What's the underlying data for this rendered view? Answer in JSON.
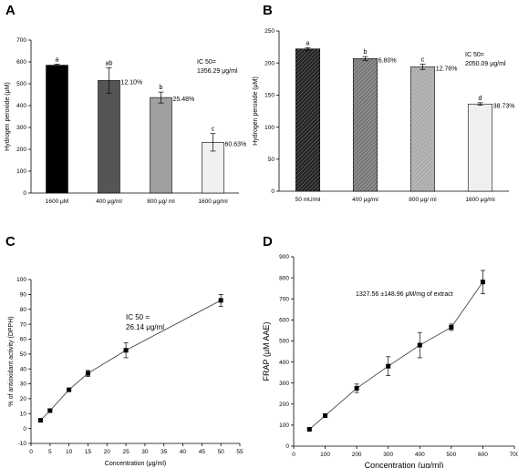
{
  "chart_data": [
    {
      "panel": "A",
      "type": "bar",
      "categories": [
        "1600 μM",
        "400 μg/ml",
        "800 μg/ ml",
        "1600 μg/ml"
      ],
      "values": [
        585,
        515,
        437,
        232
      ],
      "errors": [
        5,
        58,
        25,
        40
      ],
      "letters": [
        "a",
        "ab",
        "b",
        "c"
      ],
      "percents": [
        "",
        "12.10%",
        "25.48%",
        "60.63%"
      ],
      "fills": [
        "#000000",
        "#555555",
        "#a0a0a0",
        "#f0f0f0"
      ],
      "ylabel": "Hydrogen peroxide (μM)",
      "xlabel": "",
      "ylim": [
        0,
        700
      ],
      "yticks": [
        0,
        100,
        200,
        300,
        400,
        500,
        600,
        700
      ],
      "annotation": [
        "IC 50=",
        "1356.29 μg/ml"
      ]
    },
    {
      "panel": "B",
      "type": "bar",
      "categories": [
        "50 mU/ml",
        "400 μg/ml",
        "800 μg/ ml",
        "1600 μg/ml"
      ],
      "values": [
        222,
        207,
        194,
        136
      ],
      "errors": [
        2,
        3,
        4,
        2
      ],
      "letters": [
        "a",
        "b",
        "c",
        "d"
      ],
      "percents": [
        "",
        "6.80%",
        "12.76%",
        "38.73%"
      ],
      "fills": [
        "#222222",
        "#777777",
        "#aaaaaa",
        "#eeeeee"
      ],
      "hatched": true,
      "ylabel": "Hydrogen peroxide (μM)",
      "xlabel": "",
      "ylim": [
        0,
        250
      ],
      "yticks": [
        0,
        50,
        100,
        150,
        200,
        250
      ],
      "annotation": [
        "IC 50=",
        "2050.09 μg/ml"
      ]
    },
    {
      "panel": "C",
      "type": "line",
      "x": [
        2.5,
        5,
        10,
        15,
        25,
        50
      ],
      "y": [
        5.5,
        12,
        26,
        37,
        52.5,
        86
      ],
      "errors": [
        0.5,
        1,
        1,
        2,
        5,
        4
      ],
      "xlabel": "Concentration (μg/ml)",
      "ylabel": "% of antioxidant activity (DPPH)",
      "xlim": [
        0,
        55
      ],
      "ylim": [
        -10,
        100
      ],
      "xticks": [
        0,
        5,
        10,
        15,
        20,
        25,
        30,
        35,
        40,
        45,
        50,
        55
      ],
      "yticks": [
        -10,
        0,
        10,
        20,
        30,
        40,
        50,
        60,
        70,
        80,
        90,
        100
      ],
      "annotation": [
        "IC 50 =",
        "26.14 μg/ml"
      ]
    },
    {
      "panel": "D",
      "type": "line",
      "x": [
        50,
        100,
        200,
        300,
        400,
        500,
        600
      ],
      "y": [
        80,
        145,
        275,
        380,
        480,
        565,
        780
      ],
      "errors": [
        5,
        8,
        20,
        45,
        60,
        15,
        55
      ],
      "xlabel": "Concentration (μg/ml)",
      "ylabel": "FRAP (μM AAE)",
      "xlim": [
        0,
        700
      ],
      "ylim": [
        0,
        900
      ],
      "xticks": [
        0,
        100,
        200,
        300,
        400,
        500,
        600,
        700
      ],
      "yticks": [
        0,
        100,
        200,
        300,
        400,
        500,
        600,
        700,
        800,
        900
      ],
      "annotation": [
        "1327.56 ±148.96 μM/mg of extract"
      ]
    }
  ]
}
